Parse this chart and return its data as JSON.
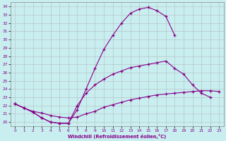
{
  "xlabel": "Windchill (Refroidissement éolien,°C)",
  "background_color": "#c8eef0",
  "grid_color": "#b0b0b0",
  "line_color": "#880088",
  "xlim": [
    -0.5,
    23.5
  ],
  "ylim": [
    19.5,
    34.5
  ],
  "xticks": [
    0,
    1,
    2,
    3,
    4,
    5,
    6,
    7,
    8,
    9,
    10,
    11,
    12,
    13,
    14,
    15,
    16,
    17,
    18,
    19,
    20,
    21,
    22,
    23
  ],
  "yticks": [
    20,
    21,
    22,
    23,
    24,
    25,
    26,
    27,
    28,
    29,
    30,
    31,
    32,
    33,
    34
  ],
  "curve1_x": [
    0,
    1,
    2,
    3,
    4,
    5,
    6,
    7,
    8,
    9,
    10,
    11,
    12,
    13,
    14,
    15,
    16,
    17,
    18
  ],
  "curve1_y": [
    22.2,
    21.7,
    21.2,
    20.5,
    20.0,
    19.85,
    19.85,
    21.5,
    24.0,
    26.5,
    28.8,
    30.5,
    32.0,
    33.2,
    33.7,
    33.9,
    33.5,
    32.8,
    30.5
  ],
  "curve2_x": [
    0,
    1,
    2,
    3,
    4,
    5,
    6,
    7,
    8,
    9,
    10,
    11,
    12,
    13,
    14,
    15,
    16,
    17,
    18,
    19,
    20,
    21,
    22
  ],
  "curve2_y": [
    22.2,
    21.7,
    21.2,
    20.5,
    20.0,
    19.85,
    19.85,
    22.0,
    23.5,
    24.5,
    25.2,
    25.8,
    26.2,
    26.6,
    26.8,
    27.0,
    27.2,
    27.4,
    26.5,
    25.8,
    24.5,
    23.5,
    23.0
  ],
  "curve3_x": [
    0,
    1,
    2,
    3,
    4,
    5,
    6,
    7,
    8,
    9,
    10,
    11,
    12,
    13,
    14,
    15,
    16,
    17,
    18,
    19,
    20,
    21,
    22,
    23
  ],
  "curve3_y": [
    22.2,
    21.7,
    21.3,
    21.1,
    20.8,
    20.6,
    20.5,
    20.6,
    21.0,
    21.3,
    21.8,
    22.1,
    22.4,
    22.7,
    22.9,
    23.1,
    23.3,
    23.4,
    23.5,
    23.6,
    23.7,
    23.8,
    23.8,
    23.7
  ]
}
